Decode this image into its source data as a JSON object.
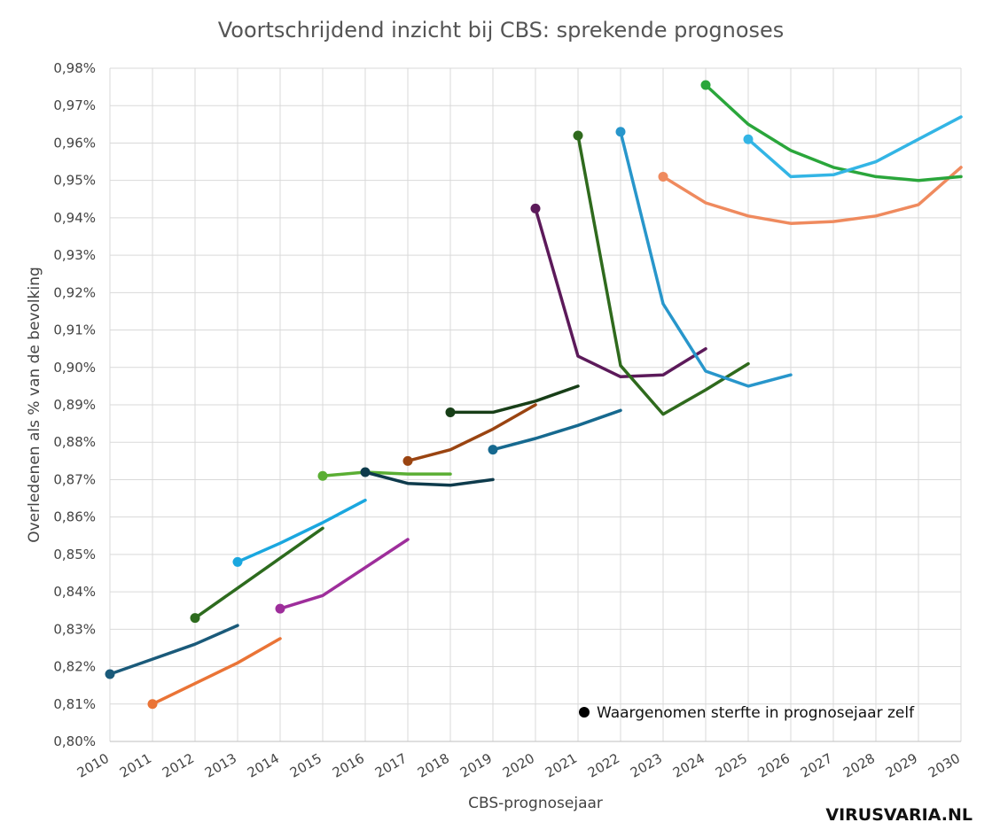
{
  "chart_data": {
    "type": "line",
    "title": "Voortschrijdend inzicht bij CBS: sprekende prognoses",
    "xlabel": "CBS-prognosejaar",
    "ylabel": "Overledenen als % van de bevolking",
    "xlim": [
      2010,
      2030
    ],
    "ylim": [
      0.8,
      0.98
    ],
    "x_ticks": [
      "2010",
      "2011",
      "2012",
      "2013",
      "2014",
      "2015",
      "2016",
      "2017",
      "2018",
      "2019",
      "2020",
      "2021",
      "2022",
      "2023",
      "2024",
      "2025",
      "2026",
      "2027",
      "2028",
      "2029",
      "2030"
    ],
    "y_ticks": [
      "0,80%",
      "0,81%",
      "0,82%",
      "0,83%",
      "0,84%",
      "0,85%",
      "0,86%",
      "0,87%",
      "0,88%",
      "0,89%",
      "0,90%",
      "0,91%",
      "0,92%",
      "0,93%",
      "0,94%",
      "0,95%",
      "0,96%",
      "0,97%",
      "0,98%"
    ],
    "grid": true,
    "annotation": "Waargenomen sterfte in prognosejaar zelf",
    "series": [
      {
        "color": "#1a5a7a",
        "x": [
          2010,
          2011,
          2012,
          2013
        ],
        "y": [
          0.818,
          0.822,
          0.826,
          0.831
        ]
      },
      {
        "color": "#ea7436",
        "x": [
          2011,
          2012,
          2013,
          2014
        ],
        "y": [
          0.81,
          0.8155,
          0.821,
          0.8275
        ]
      },
      {
        "color": "#2d6b1e",
        "x": [
          2012,
          2013,
          2014,
          2015
        ],
        "y": [
          0.833,
          0.841,
          0.849,
          0.857
        ]
      },
      {
        "color": "#1aa7df",
        "x": [
          2013,
          2014,
          2015,
          2016
        ],
        "y": [
          0.848,
          0.853,
          0.8585,
          0.8645
        ]
      },
      {
        "color": "#9e2e9b",
        "x": [
          2014,
          2015,
          2016,
          2017
        ],
        "y": [
          0.8355,
          0.839,
          0.8465,
          0.854
        ]
      },
      {
        "color": "#5aae33",
        "x": [
          2015,
          2016,
          2017,
          2018
        ],
        "y": [
          0.871,
          0.872,
          0.8715,
          0.8715
        ]
      },
      {
        "color": "#0e3b4c",
        "x": [
          2016,
          2017,
          2018,
          2019
        ],
        "y": [
          0.872,
          0.869,
          0.8685,
          0.87
        ]
      },
      {
        "color": "#9a4411",
        "x": [
          2017,
          2018,
          2019,
          2020
        ],
        "y": [
          0.875,
          0.878,
          0.8835,
          0.89
        ]
      },
      {
        "color": "#173e17",
        "x": [
          2018,
          2019,
          2020,
          2021
        ],
        "y": [
          0.888,
          0.888,
          0.891,
          0.895
        ]
      },
      {
        "color": "#16698f",
        "x": [
          2019,
          2020,
          2021,
          2022
        ],
        "y": [
          0.878,
          0.881,
          0.8845,
          0.8885
        ]
      },
      {
        "color": "#5c1a5a",
        "x": [
          2020,
          2021,
          2022,
          2023,
          2024
        ],
        "y": [
          0.9425,
          0.903,
          0.8975,
          0.898,
          0.905
        ]
      },
      {
        "color": "#2f6a1d",
        "x": [
          2021,
          2022,
          2023,
          2024,
          2025
        ],
        "y": [
          0.962,
          0.9005,
          0.8875,
          0.894,
          0.901
        ]
      },
      {
        "color": "#2896cb",
        "x": [
          2022,
          2023,
          2024,
          2025,
          2026
        ],
        "y": [
          0.963,
          0.917,
          0.899,
          0.895,
          0.898
        ]
      },
      {
        "color": "#ef8a5e",
        "x": [
          2023,
          2024,
          2025,
          2026,
          2027,
          2028,
          2029,
          2030
        ],
        "y": [
          0.951,
          0.944,
          0.9405,
          0.9385,
          0.939,
          0.9405,
          0.9435,
          0.9535
        ]
      },
      {
        "color": "#2aa63b",
        "x": [
          2024,
          2025,
          2026,
          2027,
          2028,
          2029,
          2030
        ],
        "y": [
          0.9755,
          0.965,
          0.958,
          0.9535,
          0.951,
          0.95,
          0.951
        ]
      },
      {
        "color": "#33b5e5",
        "x": [
          2025,
          2026,
          2027,
          2028,
          2029,
          2030
        ],
        "y": [
          0.961,
          0.951,
          0.9515,
          0.955,
          0.961,
          0.967
        ]
      }
    ]
  },
  "watermark": "VIRUSVARIA.NL"
}
